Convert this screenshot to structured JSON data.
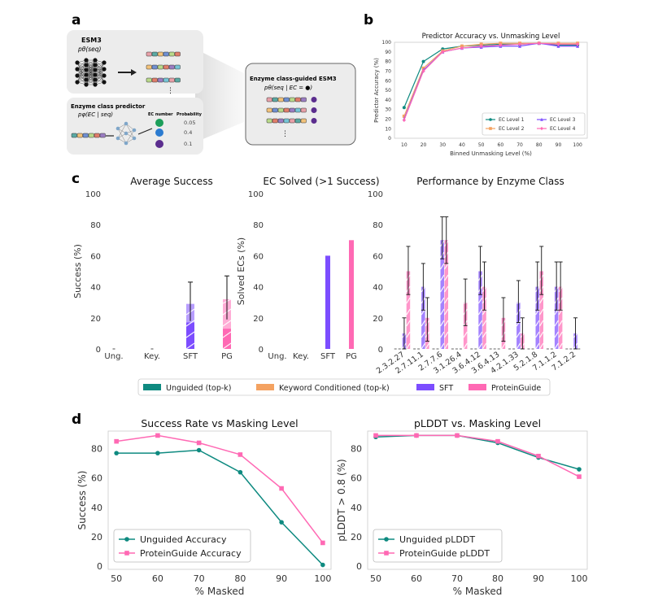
{
  "panel_labels": {
    "a": "a",
    "b": "b",
    "c": "c",
    "d": "d"
  },
  "panel_a": {
    "esm3_title": "ESM3",
    "esm3_formula": "pθ(seq)",
    "predictor_title": "Enzyme class predictor",
    "predictor_formula": "pφ(EC | seq)",
    "ec_number_header": "EC number",
    "probability_header": "Probability",
    "probabilities": [
      "0.05",
      "0.4",
      "0.1"
    ],
    "ellipsis": "⋮",
    "guided_title": "Enzyme class-guided ESM3",
    "guided_formula": "pθ(seq | EC = ●)",
    "colors": {
      "green": "#1c9e5a",
      "blue": "#2b7bd0",
      "purple": "#5b2d8e",
      "arrow": "#222222"
    }
  },
  "chart_data": [
    {
      "id": "b",
      "type": "line",
      "title": "Predictor Accuracy vs. Unmasking Level",
      "xlabel": "Binned Unmasking Level (%)",
      "ylabel": "Predictor Accuracy (%)",
      "x": [
        10,
        20,
        30,
        40,
        50,
        60,
        70,
        80,
        90,
        100
      ],
      "xlim": [
        5,
        105
      ],
      "ylim": [
        0,
        100
      ],
      "yticks": [
        0,
        10,
        20,
        30,
        40,
        50,
        60,
        70,
        80,
        90,
        100
      ],
      "legend_position": "lower-right",
      "series": [
        {
          "name": "EC Level 1",
          "color": "#0e8a80",
          "marker": "circle",
          "values": [
            32,
            80,
            93,
            96,
            97,
            98,
            98,
            99,
            97,
            97
          ]
        },
        {
          "name": "EC Level 2",
          "color": "#f4a261",
          "marker": "square",
          "values": [
            23,
            73,
            91,
            96,
            98,
            99,
            99,
            99,
            99,
            99
          ]
        },
        {
          "name": "EC Level 3",
          "color": "#7c4dff",
          "marker": "triangle",
          "values": [
            20,
            71,
            90,
            94,
            95,
            96,
            96,
            99,
            96,
            96
          ]
        },
        {
          "name": "EC Level 4",
          "color": "#ff69b4",
          "marker": "diamond",
          "values": [
            19,
            70,
            90,
            94,
            96,
            97,
            98,
            99,
            98,
            98
          ]
        }
      ]
    },
    {
      "id": "c1",
      "type": "bar",
      "title": "Average Success",
      "ylabel": "Success (%)",
      "categories": [
        "Ung.",
        "Key.",
        "SFT",
        "PG"
      ],
      "values": [
        0,
        0,
        29,
        32
      ],
      "error": [
        [
          0,
          0
        ],
        [
          0,
          0
        ],
        [
          18,
          43
        ],
        [
          19,
          47
        ]
      ],
      "inner_values": [
        0,
        0,
        17,
        13
      ],
      "colors": [
        "#0e8a80",
        "#f4a261",
        "#7c4dff",
        "#ff69b4"
      ],
      "ylim": [
        0,
        100
      ],
      "yticks": [
        0,
        20,
        40,
        60,
        80,
        100
      ]
    },
    {
      "id": "c2",
      "type": "bar",
      "title": "EC Solved (>1 Success)",
      "ylabel": "Solved ECs (%)",
      "categories": [
        "Ung.",
        "Key.",
        "SFT",
        "PG"
      ],
      "values": [
        0,
        0,
        60,
        70
      ],
      "colors": [
        "#0e8a80",
        "#f4a261",
        "#7c4dff",
        "#ff69b4"
      ],
      "ylim": [
        0,
        100
      ],
      "yticks": [
        0,
        20,
        40,
        60,
        80,
        100
      ]
    },
    {
      "id": "c3",
      "type": "bar",
      "title": "Performance by Enzyme Class",
      "categories": [
        "2.3.2.27",
        "2.7.11.1",
        "2.7.7.6",
        "3.1.26.4",
        "3.6.4.12",
        "3.6.4.13",
        "4.2.1.33",
        "5.2.1.8",
        "7.1.1.2",
        "7.1.2.2"
      ],
      "series": [
        {
          "name": "SFT",
          "color": "#7c4dff",
          "values": [
            10,
            40,
            70,
            0,
            50,
            0,
            30,
            40,
            40,
            10
          ],
          "err_low": [
            0,
            25,
            58,
            0,
            35,
            0,
            17,
            25,
            25,
            0
          ],
          "err_high": [
            20,
            55,
            85,
            0,
            66,
            0,
            44,
            56,
            56,
            20
          ]
        },
        {
          "name": "PG",
          "color": "#ff69b4",
          "values": [
            50,
            20,
            70,
            30,
            40,
            20,
            10,
            50,
            40,
            0
          ],
          "err_low": [
            35,
            5,
            55,
            15,
            25,
            5,
            0,
            35,
            25,
            0
          ],
          "err_high": [
            66,
            33,
            85,
            45,
            56,
            33,
            20,
            66,
            56,
            0
          ]
        }
      ],
      "ylim": [
        0,
        100
      ],
      "yticks": [
        0,
        20,
        40,
        60,
        80,
        100
      ]
    },
    {
      "id": "d1",
      "type": "line",
      "title": "Success Rate vs Masking Level",
      "xlabel": "% Masked",
      "ylabel": "Success (%)",
      "x": [
        50,
        60,
        70,
        80,
        90,
        100
      ],
      "xlim": [
        48,
        102
      ],
      "ylim": [
        -2,
        92
      ],
      "yticks": [
        0,
        20,
        40,
        60,
        80
      ],
      "legend_position": "lower-left",
      "series": [
        {
          "name": "Unguided Accuracy",
          "color": "#0e8a80",
          "marker": "circle",
          "values": [
            77,
            77,
            79,
            64,
            30,
            1
          ]
        },
        {
          "name": "ProteinGuide Accuracy",
          "color": "#ff69b4",
          "marker": "square",
          "values": [
            85,
            89,
            84,
            76,
            53,
            16
          ]
        }
      ]
    },
    {
      "id": "d2",
      "type": "line",
      "title": "pLDDT vs. Masking Level",
      "xlabel": "% Masked",
      "ylabel": "pLDDT > 0.8 (%)",
      "x": [
        50,
        60,
        70,
        80,
        90,
        100
      ],
      "xlim": [
        48,
        102
      ],
      "ylim": [
        -2,
        92
      ],
      "yticks": [
        0,
        20,
        40,
        60,
        80
      ],
      "legend_position": "lower-left",
      "series": [
        {
          "name": "Unguided pLDDT",
          "color": "#0e8a80",
          "marker": "circle",
          "values": [
            88,
            89,
            89,
            84,
            74,
            66
          ]
        },
        {
          "name": "ProteinGuide pLDDT",
          "color": "#ff69b4",
          "marker": "square",
          "values": [
            89,
            89,
            89,
            85,
            75,
            61
          ]
        }
      ]
    }
  ],
  "shared_legend_c": [
    {
      "name": "Unguided (top-k)",
      "color": "#0e8a80"
    },
    {
      "name": "Keyword Conditioned (top-k)",
      "color": "#f4a261"
    },
    {
      "name": "SFT",
      "color": "#7c4dff"
    },
    {
      "name": "ProteinGuide",
      "color": "#ff69b4"
    }
  ]
}
